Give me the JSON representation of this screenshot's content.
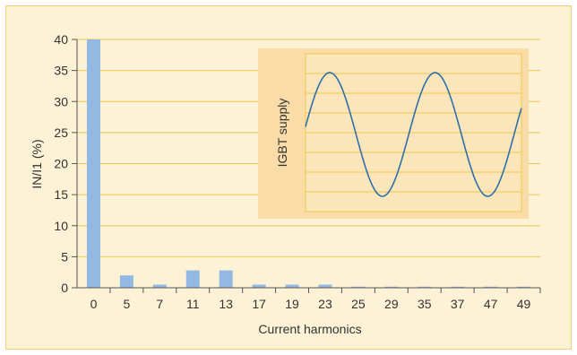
{
  "chart_data": {
    "type": "bar",
    "categories": [
      "0",
      "5",
      "7",
      "11",
      "13",
      "17",
      "19",
      "23",
      "25",
      "29",
      "35",
      "37",
      "47",
      "49"
    ],
    "values": [
      40,
      2,
      0.5,
      2.8,
      2.8,
      0.5,
      0.5,
      0.5,
      0.1,
      0.1,
      0.1,
      0.1,
      0.1,
      0.1
    ],
    "xlabel": "Current harmonics",
    "ylabel": "IN/I1 (%)",
    "yticks": [
      0,
      5,
      10,
      15,
      20,
      25,
      30,
      35,
      40
    ],
    "ylim": [
      0,
      40
    ],
    "grid": "horizontal",
    "colors": {
      "bar": "#93b9e3",
      "grid": "#f0c84a",
      "background": "#fdf1d6",
      "inset_background": "#f9dca8",
      "wave": "#2f6fa8"
    },
    "inset": {
      "label": "IGBT supply",
      "type": "line",
      "waveform": "sinusoid",
      "cycles": 2
    }
  }
}
